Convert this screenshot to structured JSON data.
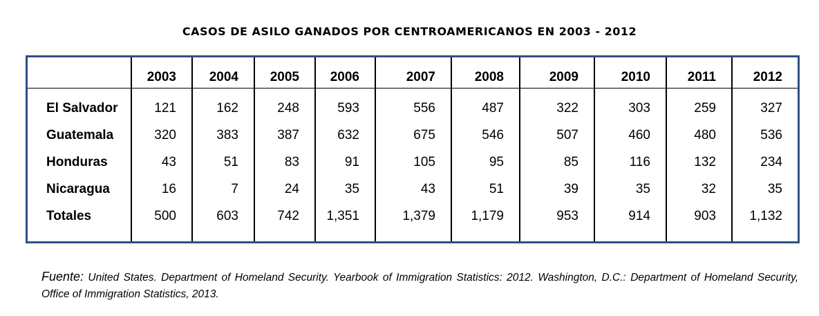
{
  "chart_data": {
    "type": "table",
    "title": "CASOS DE ASILO GANADOS POR CENTROAMERICANOS EN 2003 - 2012",
    "columns": [
      "2003",
      "2004",
      "2005",
      "2006",
      "2007",
      "2008",
      "2009",
      "2010",
      "2011",
      "2012"
    ],
    "rows": [
      {
        "label": "El Salvador",
        "values": [
          "121",
          "162",
          "248",
          "593",
          "556",
          "487",
          "322",
          "303",
          "259",
          "327"
        ]
      },
      {
        "label": "Guatemala",
        "values": [
          "320",
          "383",
          "387",
          "632",
          "675",
          "546",
          "507",
          "460",
          "480",
          "536"
        ]
      },
      {
        "label": "Honduras",
        "values": [
          "43",
          "51",
          "83",
          "91",
          "105",
          "95",
          "85",
          "116",
          "132",
          "234"
        ]
      },
      {
        "label": "Nicaragua",
        "values": [
          "16",
          "7",
          "24",
          "35",
          "43",
          "51",
          "39",
          "35",
          "32",
          "35"
        ]
      },
      {
        "label": "Totales",
        "values": [
          "500",
          "603",
          "742",
          "1,351",
          "1,379",
          "1,179",
          "953",
          "914",
          "903",
          "1,132"
        ]
      }
    ],
    "border_color": "#2f4e84"
  },
  "source": {
    "label": "Fuente:",
    "text": " United States. Department of Homeland Security. Yearbook of Immigration Statistics: 2012. Washington, D.C.: Department of Homeland Security, Office of Immigration Statistics, 2013."
  }
}
